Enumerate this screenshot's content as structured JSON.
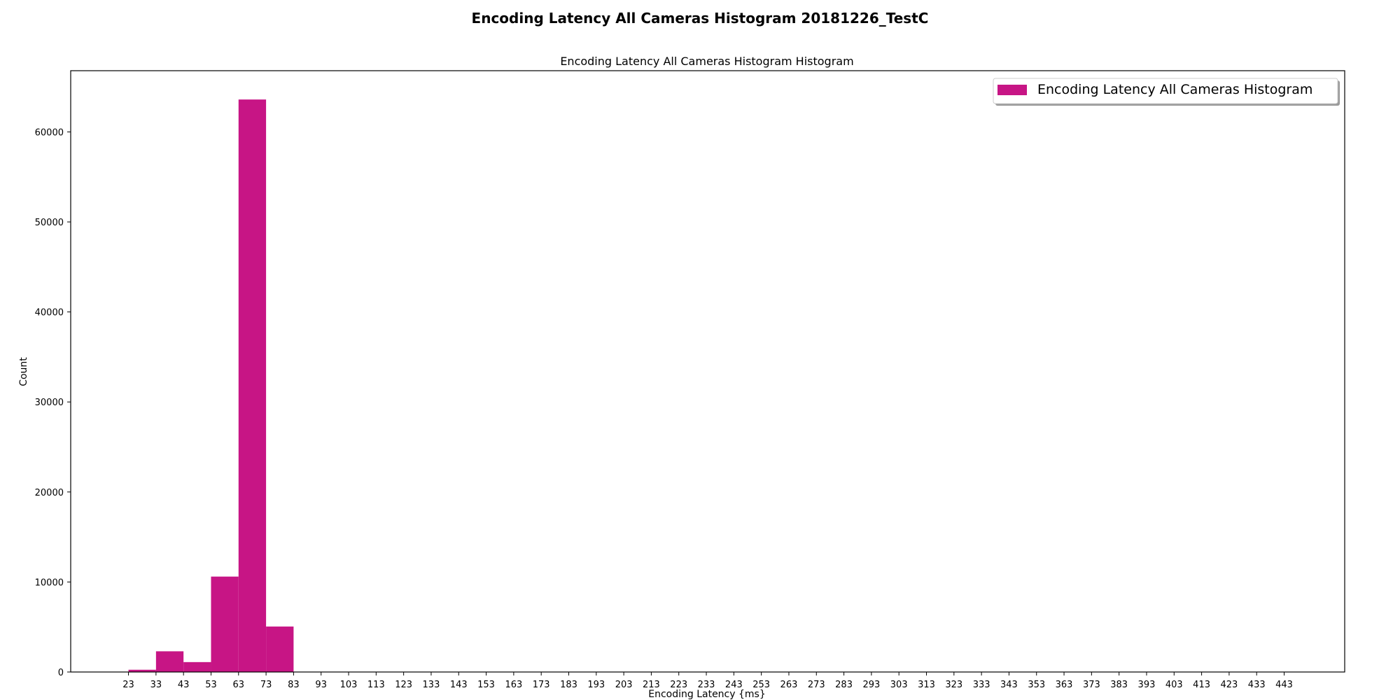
{
  "figure": {
    "suptitle": "Encoding Latency All Cameras Histogram 20181226_TestC"
  },
  "chart_data": {
    "type": "bar",
    "title": "Encoding Latency All Cameras Histogram Histogram",
    "xlabel": "Encoding Latency {ms}",
    "ylabel": "Count",
    "bin_edges": [
      23,
      33,
      43,
      53,
      63,
      73,
      83
    ],
    "counts": [
      250,
      2300,
      1100,
      10600,
      63600,
      5050
    ],
    "xticks": [
      23,
      33,
      43,
      53,
      63,
      73,
      83,
      93,
      103,
      113,
      123,
      133,
      143,
      153,
      163,
      173,
      183,
      193,
      203,
      213,
      223,
      233,
      243,
      253,
      263,
      273,
      283,
      293,
      303,
      313,
      323,
      333,
      343,
      353,
      363,
      373,
      383,
      393,
      403,
      413,
      423,
      433,
      443
    ],
    "yticks": [
      0,
      10000,
      20000,
      30000,
      40000,
      50000,
      60000
    ],
    "xlim": [
      2,
      465
    ],
    "ylim": [
      0,
      66800
    ],
    "grid": false,
    "legend": {
      "label": "Encoding Latency All Cameras Histogram",
      "position": "top-right"
    },
    "bar_color": "#c71585"
  }
}
